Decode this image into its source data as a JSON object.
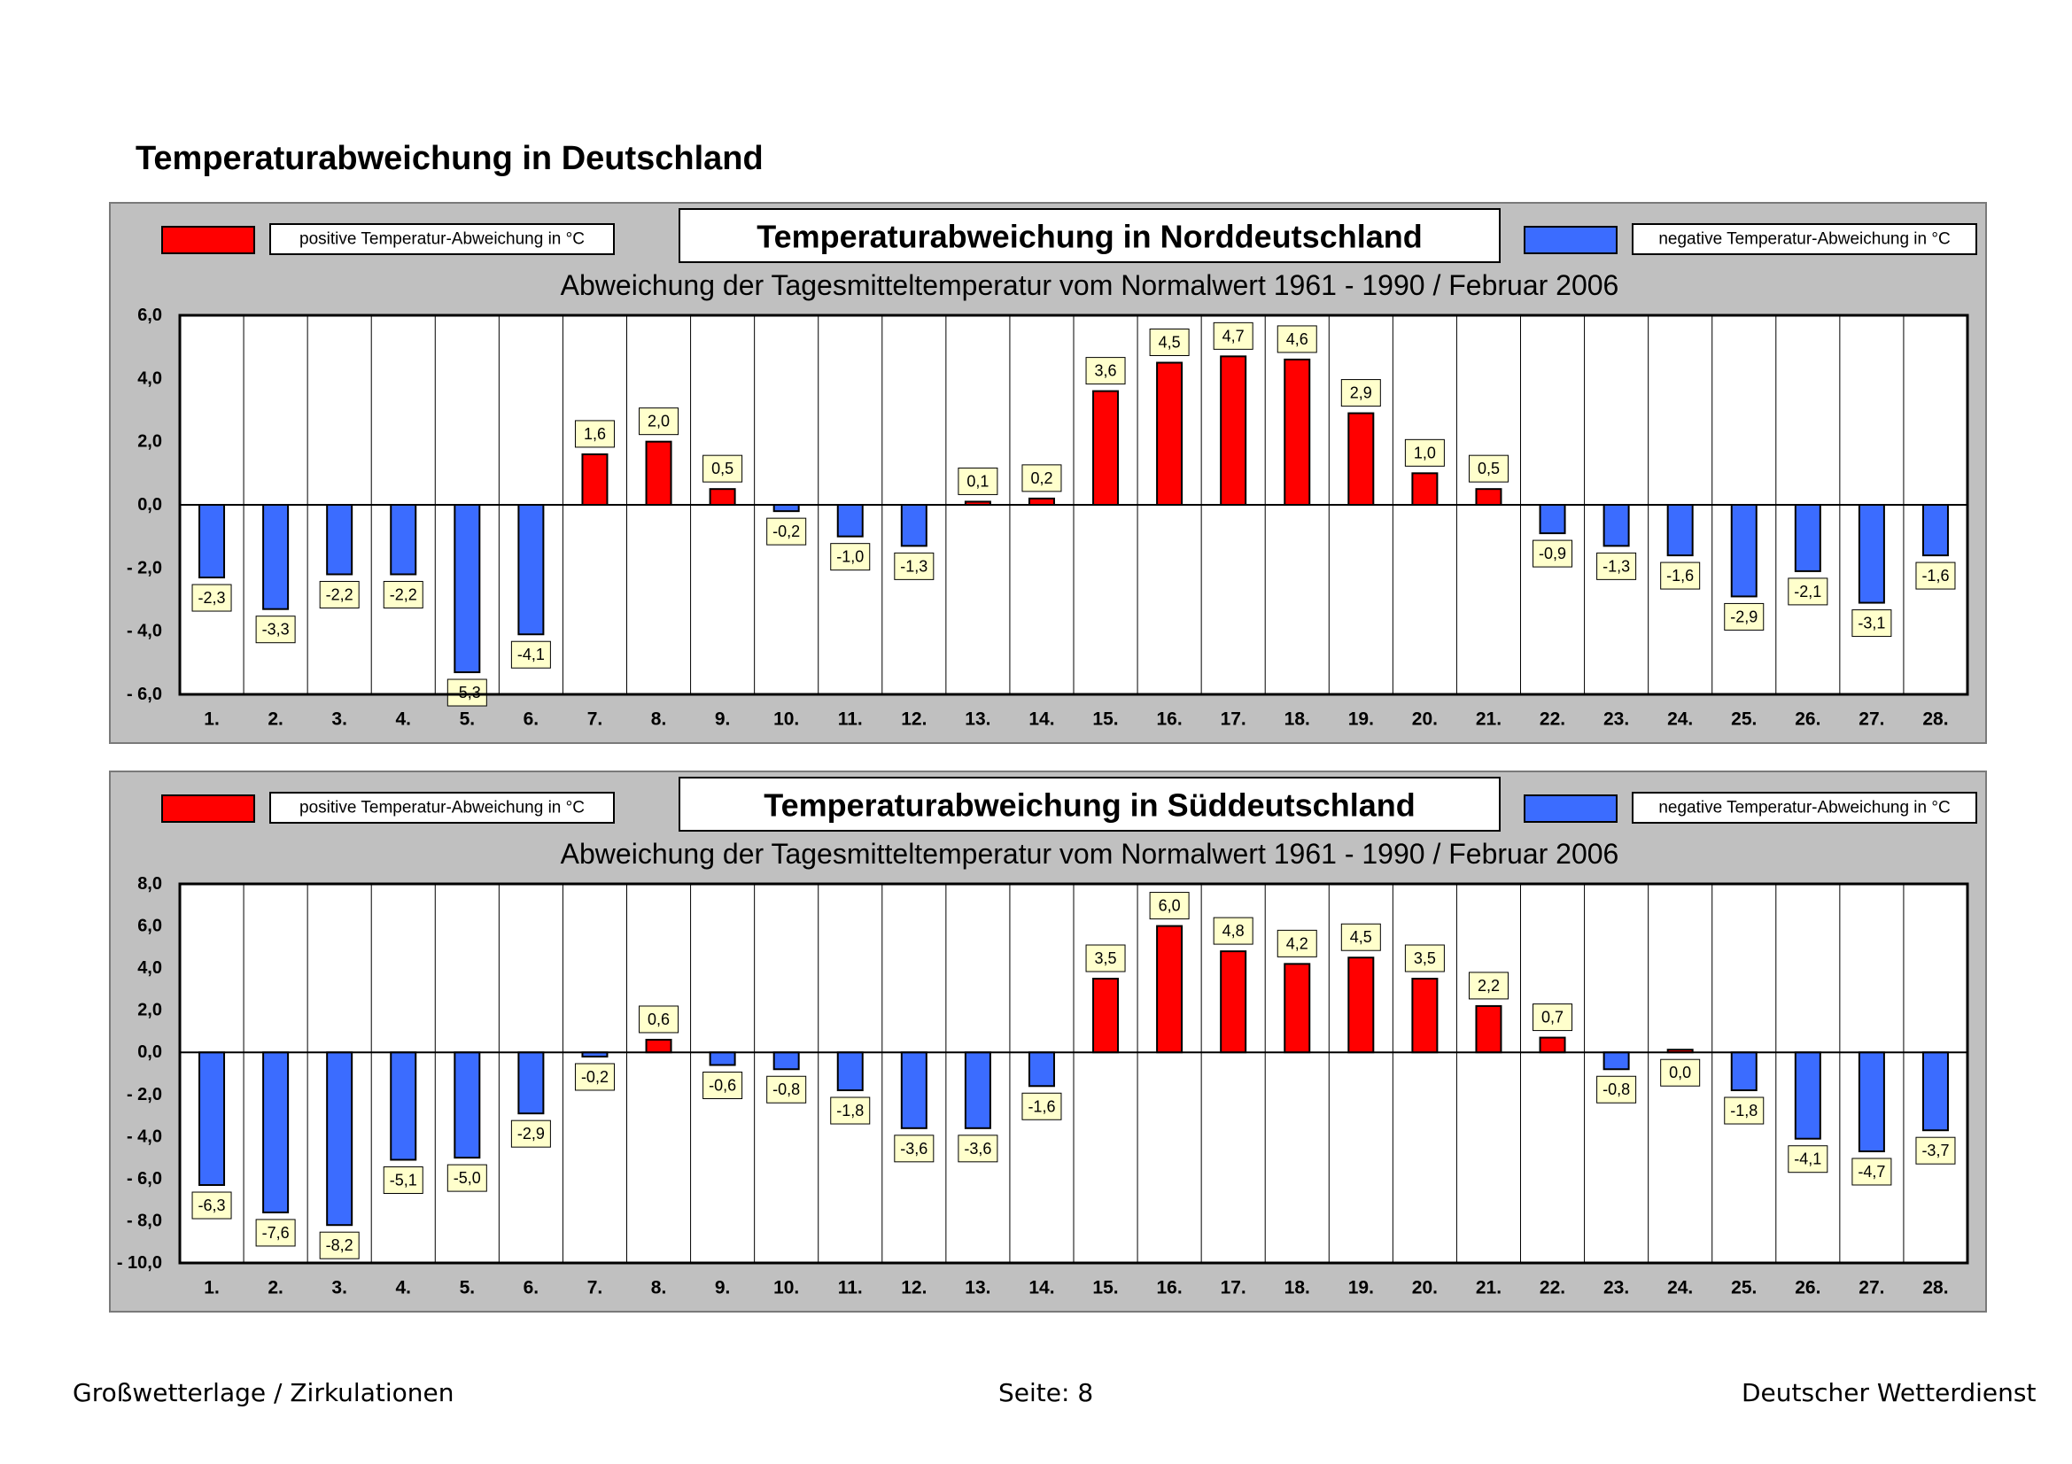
{
  "page": {
    "title": "Temperaturabweichung in Deutschland",
    "footer_left": "Großwetterlage / Zirkulationen",
    "footer_center": "Seite: 8",
    "footer_right": "Deutscher Wetterdienst"
  },
  "colors": {
    "positive": "#ff0000",
    "negative": "#3b6cff",
    "panel_bg": "#c0c0c0",
    "label_bg": "#ffffcc"
  },
  "chart_data": [
    {
      "type": "bar",
      "title": "Temperaturabweichung in Norddeutschland",
      "subtitle": "Abweichung der Tagesmitteltemperatur vom Normalwert 1961 - 1990  /  Februar 2006",
      "legend_positive": "positive Temperatur-Abweichung in °C",
      "legend_negative": "negative Temperatur-Abweichung in °C",
      "ylim": [
        -6,
        6
      ],
      "yticks": [
        6,
        4,
        2,
        0,
        -2,
        -4,
        -6
      ],
      "ytick_labels": [
        "6,0",
        "4,0",
        "2,0",
        "0,0",
        "- 2,0",
        "- 4,0",
        "- 6,0"
      ],
      "categories": [
        "1.",
        "2.",
        "3.",
        "4.",
        "5.",
        "6.",
        "7.",
        "8.",
        "9.",
        "10.",
        "11.",
        "12.",
        "13.",
        "14.",
        "15.",
        "16.",
        "17.",
        "18.",
        "19.",
        "20.",
        "21.",
        "22.",
        "23.",
        "24.",
        "25.",
        "26.",
        "27.",
        "28."
      ],
      "values": [
        -2.3,
        -3.3,
        -2.2,
        -2.2,
        -5.3,
        -4.1,
        1.6,
        2.0,
        0.5,
        -0.2,
        -1.0,
        -1.3,
        0.1,
        0.2,
        3.6,
        4.5,
        4.7,
        4.6,
        2.9,
        1.0,
        0.5,
        -0.9,
        -1.3,
        -1.6,
        -2.9,
        -2.1,
        -3.1,
        -1.6
      ],
      "value_labels": [
        "-2,3",
        "-3,3",
        "-2,2",
        "-2,2",
        "-5,3",
        "-4,1",
        "1,6",
        "2,0",
        "0,5",
        "-0,2",
        "-1,0",
        "-1,3",
        "0,1",
        "0,2",
        "3,6",
        "4,5",
        "4,7",
        "4,6",
        "2,9",
        "1,0",
        "0,5",
        "-0,9",
        "-1,3",
        "-1,6",
        "-2,9",
        "-2,1",
        "-3,1",
        "-1,6"
      ]
    },
    {
      "type": "bar",
      "title": "Temperaturabweichung in Süddeutschland",
      "subtitle": "Abweichung der Tagesmitteltemperatur vom Normalwert 1961 - 1990  /  Februar 2006",
      "legend_positive": "positive Temperatur-Abweichung in °C",
      "legend_negative": "negative Temperatur-Abweichung in °C",
      "ylim": [
        -10,
        8
      ],
      "yticks": [
        8,
        6,
        4,
        2,
        0,
        -2,
        -4,
        -6,
        -8,
        -10
      ],
      "ytick_labels": [
        "8,0",
        "6,0",
        "4,0",
        "2,0",
        "0,0",
        "- 2,0",
        "- 4,0",
        "- 6,0",
        "- 8,0",
        "- 10,0"
      ],
      "categories": [
        "1.",
        "2.",
        "3.",
        "4.",
        "5.",
        "6.",
        "7.",
        "8.",
        "9.",
        "10.",
        "11.",
        "12.",
        "13.",
        "14.",
        "15.",
        "16.",
        "17.",
        "18.",
        "19.",
        "20.",
        "21.",
        "22.",
        "23.",
        "24.",
        "25.",
        "26.",
        "27.",
        "28."
      ],
      "values": [
        -6.3,
        -7.6,
        -8.2,
        -5.1,
        -5.0,
        -2.9,
        -0.2,
        0.6,
        -0.6,
        -0.8,
        -1.8,
        -3.6,
        -3.6,
        -1.6,
        3.5,
        6.0,
        4.8,
        4.2,
        4.5,
        3.5,
        2.2,
        0.7,
        -0.8,
        0.0,
        -1.8,
        -4.1,
        -4.7,
        -3.7
      ],
      "value_labels": [
        "-6,3",
        "-7,6",
        "-8,2",
        "-5,1",
        "-5,0",
        "-2,9",
        "-0,2",
        "0,6",
        "-0,6",
        "-0,8",
        "-1,8",
        "-3,6",
        "-3,6",
        "-1,6",
        "3,5",
        "6,0",
        "4,8",
        "4,2",
        "4,5",
        "3,5",
        "2,2",
        "0,7",
        "-0,8",
        "0,0",
        "-1,8",
        "-4,1",
        "-4,7",
        "-3,7"
      ]
    }
  ]
}
